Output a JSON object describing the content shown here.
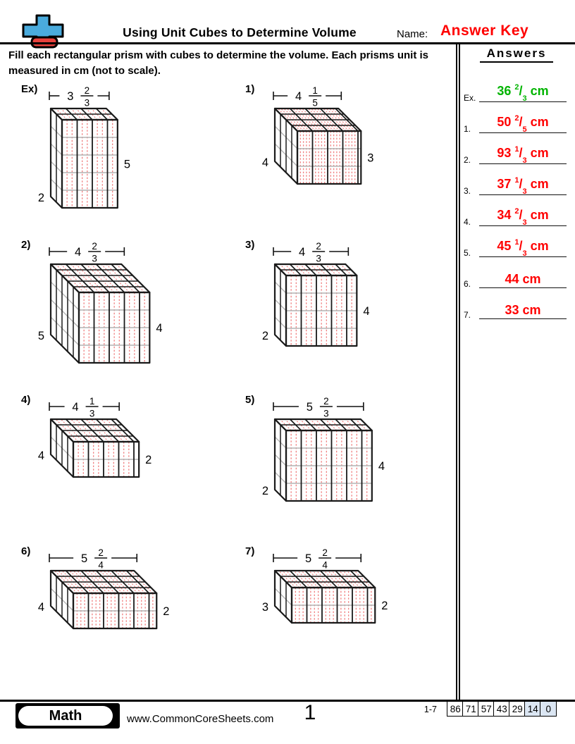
{
  "header": {
    "title": "Using Unit Cubes to Determine Volume",
    "name_label": "Name:",
    "name_value": "Answer Key",
    "instructions": "Fill each rectangular prism with cubes to determine the volume. Each prisms unit is measured in cm (not to scale)."
  },
  "problems": [
    {
      "label": "Ex)",
      "width_whole": 3,
      "frac_num": 2,
      "frac_den": 3,
      "height": 5,
      "depth": 2
    },
    {
      "label": "1)",
      "width_whole": 4,
      "frac_num": 1,
      "frac_den": 5,
      "height": 3,
      "depth": 4
    },
    {
      "label": "2)",
      "width_whole": 4,
      "frac_num": 2,
      "frac_den": 3,
      "height": 4,
      "depth": 5
    },
    {
      "label": "3)",
      "width_whole": 4,
      "frac_num": 2,
      "frac_den": 3,
      "height": 4,
      "depth": 2
    },
    {
      "label": "4)",
      "width_whole": 4,
      "frac_num": 1,
      "frac_den": 3,
      "height": 2,
      "depth": 4
    },
    {
      "label": "5)",
      "width_whole": 5,
      "frac_num": 2,
      "frac_den": 3,
      "height": 4,
      "depth": 2
    },
    {
      "label": "6)",
      "width_whole": 5,
      "frac_num": 2,
      "frac_den": 4,
      "height": 2,
      "depth": 4
    },
    {
      "label": "7)",
      "width_whole": 5,
      "frac_num": 2,
      "frac_den": 4,
      "height": 2,
      "depth": 3
    }
  ],
  "answers_panel": {
    "title": "Answers",
    "items": [
      {
        "label": "Ex.",
        "whole": "36",
        "num": "2",
        "den": "3",
        "unit": "cm",
        "color_key": "answer_green"
      },
      {
        "label": "1.",
        "whole": "50",
        "num": "2",
        "den": "5",
        "unit": "cm",
        "color_key": "answer_red"
      },
      {
        "label": "2.",
        "whole": "93",
        "num": "1",
        "den": "3",
        "unit": "cm",
        "color_key": "answer_red"
      },
      {
        "label": "3.",
        "whole": "37",
        "num": "1",
        "den": "3",
        "unit": "cm",
        "color_key": "answer_red"
      },
      {
        "label": "4.",
        "whole": "34",
        "num": "2",
        "den": "3",
        "unit": "cm",
        "color_key": "answer_red"
      },
      {
        "label": "5.",
        "whole": "45",
        "num": "1",
        "den": "3",
        "unit": "cm",
        "color_key": "answer_red"
      },
      {
        "label": "6.",
        "whole": "44",
        "num": "",
        "den": "",
        "unit": "cm",
        "color_key": "answer_red"
      },
      {
        "label": "7.",
        "whole": "33",
        "num": "",
        "den": "",
        "unit": "cm",
        "color_key": "answer_red"
      }
    ]
  },
  "footer": {
    "badge": "Math",
    "website": "www.CommonCoreSheets.com",
    "page": "1",
    "score_label": "1-7",
    "scores": [
      "86",
      "71",
      "57",
      "43",
      "29",
      "14",
      "0"
    ],
    "highlight_from_index": 5
  },
  "colors": {
    "answer_red": "#ff0000",
    "answer_green": "#00b400",
    "cube_red": "#f08080",
    "cube_gray": "#b3b3b3",
    "line_black": "#1a1a1a",
    "score_highlight": "#dbe6f3",
    "logo_blue": "#4aabdd",
    "logo_red": "#e8413c"
  }
}
